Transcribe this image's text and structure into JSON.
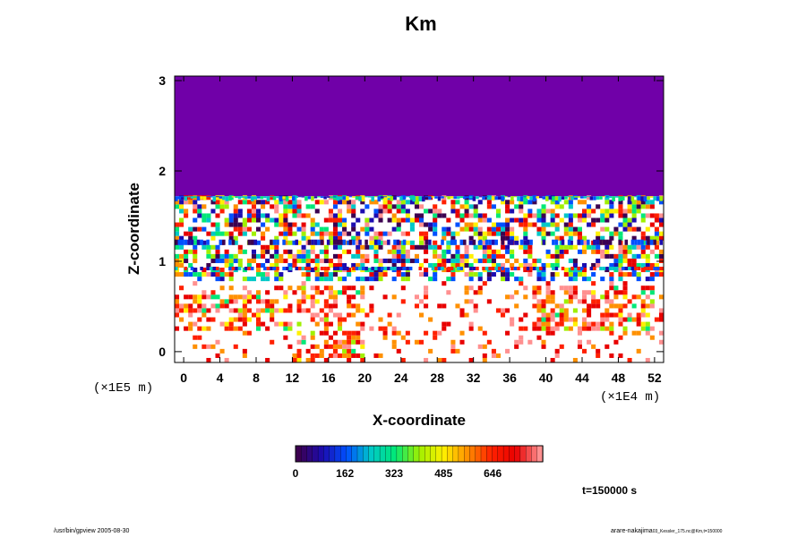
{
  "chart_data": {
    "type": "heatmap",
    "title": "Km",
    "xlabel": "X-coordinate",
    "ylabel": "Z-coordinate",
    "x_scale_label": "(×1E4 m)",
    "y_scale_label": "(×1E5 m)",
    "x_ticks": [
      "0",
      "4",
      "8",
      "12",
      "16",
      "20",
      "24",
      "28",
      "32",
      "36",
      "40",
      "44",
      "48",
      "52"
    ],
    "y_ticks": [
      "0",
      "1",
      "2",
      "3"
    ],
    "xlim": [
      -1,
      53
    ],
    "ylim": [
      -0.12,
      3.05
    ],
    "colorbar_ticks": [
      "0",
      "162",
      "323",
      "485",
      "646"
    ],
    "colorbar_range": [
      0,
      810
    ],
    "colormap": [
      "#3c0050",
      "#1c0cb0",
      "#0050ff",
      "#00c8c8",
      "#00e878",
      "#a0f000",
      "#fff000",
      "#ff9000",
      "#ff2000",
      "#e80000",
      "#ff9090"
    ],
    "fill_color_top": "#7000a8",
    "background_color": "#ffffff",
    "time_label": "t=150000 s"
  },
  "footer_left": "/usr/bin/gpview 2005-08-30",
  "footer_right": "arare-nakajima",
  "footer_right_small": "03_Kessler_175.nc@Km,t=150000"
}
